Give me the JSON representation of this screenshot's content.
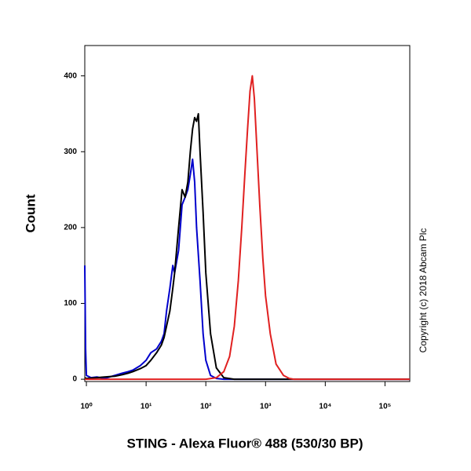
{
  "chart_data": {
    "type": "line",
    "x_label": "STING - Alexa Fluor® 488 (530/30 BP)",
    "y_label": "Count",
    "annotation": "Copyright (c) 2018 Abcam Plc",
    "xscale": "log",
    "xlim": [
      0.94,
      260000
    ],
    "ylim": [
      -3,
      440
    ],
    "xticks": [
      {
        "value": 1,
        "label": "10⁰"
      },
      {
        "value": 10,
        "label": "10¹"
      },
      {
        "value": 100,
        "label": "10²"
      },
      {
        "value": 1000,
        "label": "10³"
      },
      {
        "value": 10000,
        "label": "10⁴"
      },
      {
        "value": 100000,
        "label": "10⁵"
      }
    ],
    "yticks": [
      0,
      100,
      200,
      300,
      400
    ],
    "series": [
      {
        "color": "#0000cc",
        "x": [
          0.94,
          0.97,
          1.0,
          1.2,
          1.5,
          2,
          3,
          4,
          5,
          6,
          8,
          10,
          12,
          15,
          18,
          20,
          22,
          25,
          28,
          30,
          35,
          40,
          45,
          50,
          55,
          60,
          65,
          70,
          80,
          90,
          100,
          120,
          150,
          200,
          300,
          1000,
          10000,
          260000
        ],
        "values": [
          150,
          40,
          5,
          2,
          3,
          1,
          5,
          8,
          10,
          12,
          18,
          25,
          35,
          40,
          50,
          60,
          90,
          120,
          150,
          140,
          170,
          230,
          240,
          250,
          270,
          290,
          260,
          200,
          130,
          60,
          25,
          5,
          1,
          0,
          0,
          0,
          0,
          0
        ]
      },
      {
        "color": "#000000",
        "x": [
          0.94,
          1.0,
          1.5,
          2,
          3,
          4,
          5,
          6,
          8,
          10,
          12,
          15,
          18,
          20,
          22,
          25,
          28,
          30,
          35,
          40,
          45,
          50,
          55,
          60,
          65,
          70,
          75,
          80,
          90,
          100,
          120,
          150,
          200,
          300,
          1000,
          10000,
          260000
        ],
        "values": [
          2,
          1,
          2,
          3,
          4,
          6,
          8,
          10,
          14,
          18,
          25,
          35,
          45,
          55,
          70,
          90,
          120,
          140,
          200,
          250,
          240,
          260,
          300,
          330,
          345,
          340,
          350,
          300,
          220,
          140,
          60,
          15,
          2,
          0,
          0,
          0,
          0
        ]
      },
      {
        "color": "#e02020",
        "x": [
          0.94,
          10,
          100,
          150,
          200,
          250,
          300,
          350,
          400,
          450,
          500,
          550,
          600,
          650,
          700,
          800,
          900,
          1000,
          1200,
          1500,
          2000,
          2500,
          3000,
          10000,
          260000
        ],
        "values": [
          0,
          0,
          0,
          2,
          10,
          30,
          70,
          130,
          200,
          270,
          330,
          380,
          400,
          370,
          320,
          230,
          160,
          110,
          60,
          20,
          5,
          1,
          0,
          0,
          0
        ]
      }
    ]
  }
}
